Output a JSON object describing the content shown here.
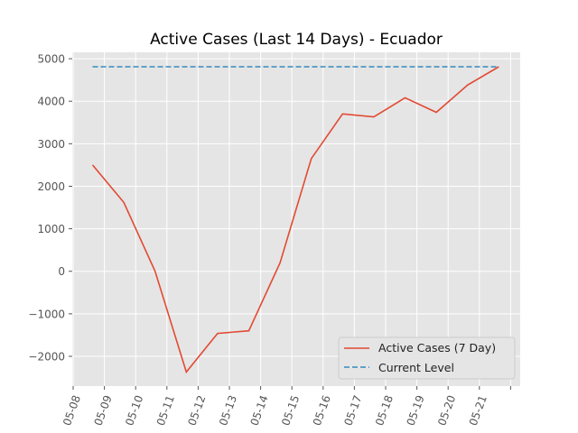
{
  "chart_data": {
    "type": "line",
    "title": "Active Cases (Last 14 Days) - Ecuador",
    "xlabel": "",
    "ylabel": "",
    "x_ticks": [
      "05-08",
      "05-09",
      "05-10",
      "05-11",
      "05-12",
      "05-13",
      "05-14",
      "05-15",
      "05-16",
      "05-17",
      "05-18",
      "05-19",
      "05-20",
      "05-21"
    ],
    "y_ticks": [
      -2000,
      -1000,
      0,
      1000,
      2000,
      3000,
      4000,
      5000
    ],
    "ylim": [
      -2700,
      5150
    ],
    "series": [
      {
        "name": "Active Cases (7 Day)",
        "color": "#E24A33",
        "style": "solid",
        "values": [
          2500,
          1620,
          0,
          -2370,
          -1460,
          -1400,
          200,
          2650,
          3700,
          3630,
          4080,
          3740,
          4380,
          4810
        ]
      },
      {
        "name": "Current Level",
        "color": "#348ABD",
        "style": "dashed",
        "values": [
          4810,
          4810,
          4810,
          4810,
          4810,
          4810,
          4810,
          4810,
          4810,
          4810,
          4810,
          4810,
          4810,
          4810
        ]
      }
    ],
    "grid": true,
    "legend_position": "lower-right"
  }
}
